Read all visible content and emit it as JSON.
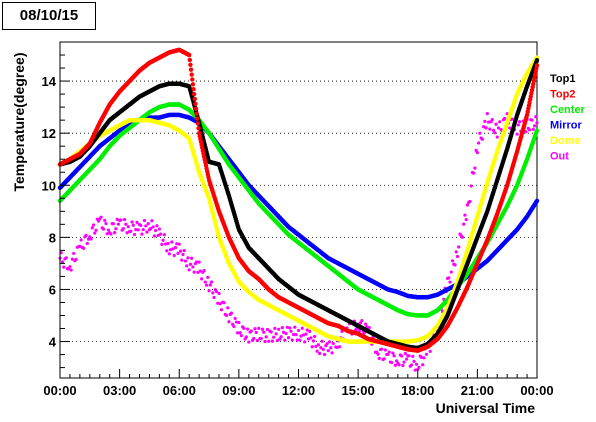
{
  "chart_data": {
    "type": "scatter",
    "title": "08/10/15",
    "xlabel": "Universal Time",
    "ylabel": "Temperature(degree)",
    "xlim": [
      0,
      24
    ],
    "ylim": [
      2.6,
      15.5
    ],
    "x_ticks": [
      0,
      3,
      6,
      9,
      12,
      15,
      18,
      21,
      24
    ],
    "x_tick_labels": [
      "00:00",
      "03:00",
      "06:00",
      "09:00",
      "12:00",
      "15:00",
      "18:00",
      "21:00",
      "00:00"
    ],
    "y_ticks": [
      4,
      6,
      8,
      10,
      12,
      14
    ],
    "y_tick_labels": [
      "4",
      "6",
      "8",
      "10",
      "12",
      "14"
    ],
    "grid": "horizontal-dotted",
    "legend_position": "right",
    "x": [
      0,
      0.5,
      1,
      1.5,
      2,
      2.5,
      3,
      3.5,
      4,
      4.5,
      5,
      5.5,
      6,
      6.5,
      7,
      7.5,
      8,
      8.5,
      9,
      9.5,
      10,
      10.5,
      11,
      11.5,
      12,
      12.5,
      13,
      13.5,
      14,
      14.5,
      15,
      15.5,
      16,
      16.5,
      17,
      17.5,
      18,
      18.5,
      19,
      19.5,
      20,
      20.5,
      21,
      21.5,
      22,
      22.5,
      23,
      23.5,
      24
    ],
    "series": [
      {
        "name": "Top1",
        "color": "#000000",
        "values": [
          10.8,
          10.9,
          11.1,
          11.5,
          12.0,
          12.5,
          12.8,
          13.1,
          13.4,
          13.6,
          13.8,
          13.9,
          13.9,
          13.8,
          12.4,
          10.9,
          10.8,
          9.6,
          8.3,
          7.6,
          7.2,
          6.8,
          6.4,
          6.1,
          5.8,
          5.6,
          5.4,
          5.2,
          5.0,
          4.8,
          4.6,
          4.4,
          4.2,
          4.0,
          3.9,
          3.8,
          3.75,
          3.9,
          4.3,
          5.0,
          6.0,
          7.0,
          8.0,
          9.0,
          10.2,
          11.4,
          12.7,
          13.8,
          14.8
        ]
      },
      {
        "name": "Top2",
        "color": "#ff0000",
        "values": [
          10.8,
          11.0,
          11.2,
          11.6,
          12.4,
          13.1,
          13.6,
          14.0,
          14.4,
          14.7,
          14.9,
          15.1,
          15.2,
          15.0,
          12.0,
          10.2,
          9.0,
          8.0,
          7.2,
          6.7,
          6.4,
          6.0,
          5.7,
          5.5,
          5.3,
          5.1,
          4.9,
          4.7,
          4.6,
          4.4,
          4.3,
          4.1,
          4.0,
          3.9,
          3.8,
          3.7,
          3.65,
          3.8,
          4.1,
          4.6,
          5.3,
          6.1,
          7.0,
          7.9,
          8.9,
          10.0,
          11.3,
          12.7,
          14.6
        ]
      },
      {
        "name": "Center",
        "color": "#00ee00",
        "values": [
          9.4,
          9.8,
          10.2,
          10.6,
          11.0,
          11.5,
          11.9,
          12.2,
          12.5,
          12.8,
          13.0,
          13.1,
          13.1,
          12.9,
          12.5,
          12.0,
          11.4,
          10.8,
          10.3,
          9.8,
          9.3,
          8.9,
          8.5,
          8.1,
          7.8,
          7.5,
          7.2,
          6.9,
          6.6,
          6.3,
          6.0,
          5.8,
          5.6,
          5.4,
          5.2,
          5.05,
          5.0,
          5.0,
          5.2,
          5.6,
          6.1,
          6.6,
          7.2,
          7.8,
          8.5,
          9.2,
          10.0,
          11.0,
          12.1
        ]
      },
      {
        "name": "Mirror",
        "color": "#0000ff",
        "values": [
          9.9,
          10.3,
          10.7,
          11.1,
          11.5,
          11.8,
          12.1,
          12.3,
          12.5,
          12.6,
          12.6,
          12.7,
          12.7,
          12.6,
          12.4,
          12.0,
          11.5,
          11.0,
          10.5,
          10.0,
          9.6,
          9.2,
          8.8,
          8.4,
          8.1,
          7.8,
          7.5,
          7.2,
          7.0,
          6.8,
          6.6,
          6.4,
          6.2,
          6.0,
          5.9,
          5.75,
          5.7,
          5.7,
          5.8,
          6.0,
          6.2,
          6.5,
          6.8,
          7.1,
          7.5,
          7.9,
          8.3,
          8.8,
          9.4
        ]
      },
      {
        "name": "Dome",
        "color": "#ffff00",
        "values": [
          10.8,
          11.0,
          11.3,
          11.6,
          11.9,
          12.1,
          12.3,
          12.5,
          12.5,
          12.5,
          12.4,
          12.3,
          12.1,
          11.8,
          10.5,
          9.5,
          8.0,
          7.0,
          6.3,
          5.9,
          5.6,
          5.4,
          5.2,
          5.0,
          4.8,
          4.6,
          4.4,
          4.2,
          4.1,
          4.0,
          4.0,
          4.0,
          4.0,
          4.0,
          4.0,
          4.0,
          4.05,
          4.2,
          4.6,
          5.3,
          6.3,
          7.5,
          8.8,
          10.1,
          11.3,
          12.4,
          13.5,
          14.3,
          14.9
        ]
      },
      {
        "name": "Out",
        "color": "#ff00ff",
        "values": [
          7.2,
          6.9,
          7.6,
          8.1,
          8.6,
          8.3,
          8.5,
          8.4,
          8.3,
          8.5,
          8.1,
          7.6,
          7.5,
          7.0,
          6.8,
          6.2,
          5.6,
          5.0,
          4.5,
          4.2,
          4.3,
          4.2,
          4.3,
          4.3,
          4.3,
          4.2,
          3.8,
          3.7,
          4.0,
          4.4,
          4.7,
          4.4,
          3.6,
          3.4,
          3.3,
          3.3,
          3.1,
          3.6,
          4.6,
          6.2,
          7.5,
          9.0,
          11.5,
          12.5,
          12.1,
          12.5,
          12.2,
          12.3,
          12.4
        ]
      }
    ]
  }
}
